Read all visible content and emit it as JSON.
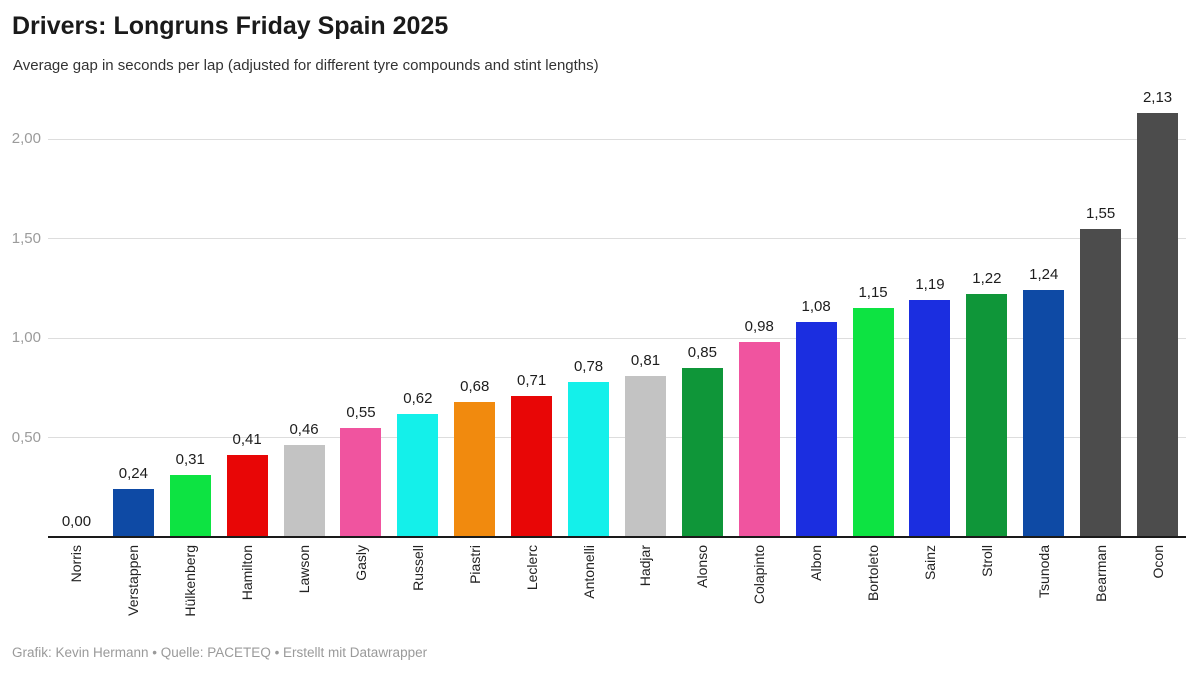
{
  "header": {
    "title": "Drivers: Longruns Friday Spain 2025",
    "subtitle": "Average gap in seconds per lap (adjusted for different tyre compounds and stint lengths)"
  },
  "chart_data": {
    "type": "bar",
    "title": "Drivers: Longruns Friday Spain 2025",
    "subtitle": "Average gap in seconds per lap (adjusted for different tyre compounds and stint lengths)",
    "xlabel": "",
    "ylabel": "Average gap in seconds per lap",
    "ylim": [
      0,
      2.25
    ],
    "grid": "horizontal",
    "legend_position": "none",
    "decimal_format": "comma",
    "yticks": [
      0.5,
      1.0,
      1.5,
      2.0
    ],
    "ytick_labels": [
      "0,50",
      "1,00",
      "1,50",
      "2,00"
    ],
    "categories": [
      "Norris",
      "Verstappen",
      "Hülkenberg",
      "Hamilton",
      "Lawson",
      "Gasly",
      "Russell",
      "Piastri",
      "Leclerc",
      "Antonelli",
      "Hadjar",
      "Alonso",
      "Colapinto",
      "Albon",
      "Bortoleto",
      "Sainz",
      "Stroll",
      "Tsunoda",
      "Bearman",
      "Ocon"
    ],
    "values": [
      0.0,
      0.24,
      0.31,
      0.41,
      0.46,
      0.55,
      0.62,
      0.68,
      0.71,
      0.78,
      0.81,
      0.85,
      0.98,
      1.08,
      1.15,
      1.19,
      1.22,
      1.24,
      1.55,
      2.13
    ],
    "value_labels": [
      "0,00",
      "0,24",
      "0,31",
      "0,41",
      "0,46",
      "0,55",
      "0,62",
      "0,68",
      "0,71",
      "0,78",
      "0,81",
      "0,85",
      "0,98",
      "1,08",
      "1,15",
      "1,19",
      "1,22",
      "1,24",
      "1,55",
      "2,13"
    ],
    "bar_colors": [
      "#f18a0e",
      "#0e4aa5",
      "#0de342",
      "#e80606",
      "#c3c3c3",
      "#f0549f",
      "#14f0ea",
      "#f18a0e",
      "#e80606",
      "#14f0ea",
      "#c3c3c3",
      "#0f9639",
      "#f0549f",
      "#1b2ee0",
      "#0de342",
      "#1b2ee0",
      "#0f9639",
      "#0e4aa5",
      "#4c4c4c",
      "#4c4c4c"
    ]
  },
  "footer": {
    "credit": "Grafik: Kevin Hermann • Quelle: PACETEQ • Erstellt mit Datawrapper"
  },
  "colors": {
    "background": "#ffffff",
    "title": "#1a1a1a",
    "subtitle": "#333333",
    "gridline": "#dddddd",
    "axis_line": "#1a1a1a",
    "ytick_label": "#9b9b9b",
    "value_label": "#1d1d1d",
    "category_label": "#222222",
    "footer": "#9a9a9a"
  }
}
